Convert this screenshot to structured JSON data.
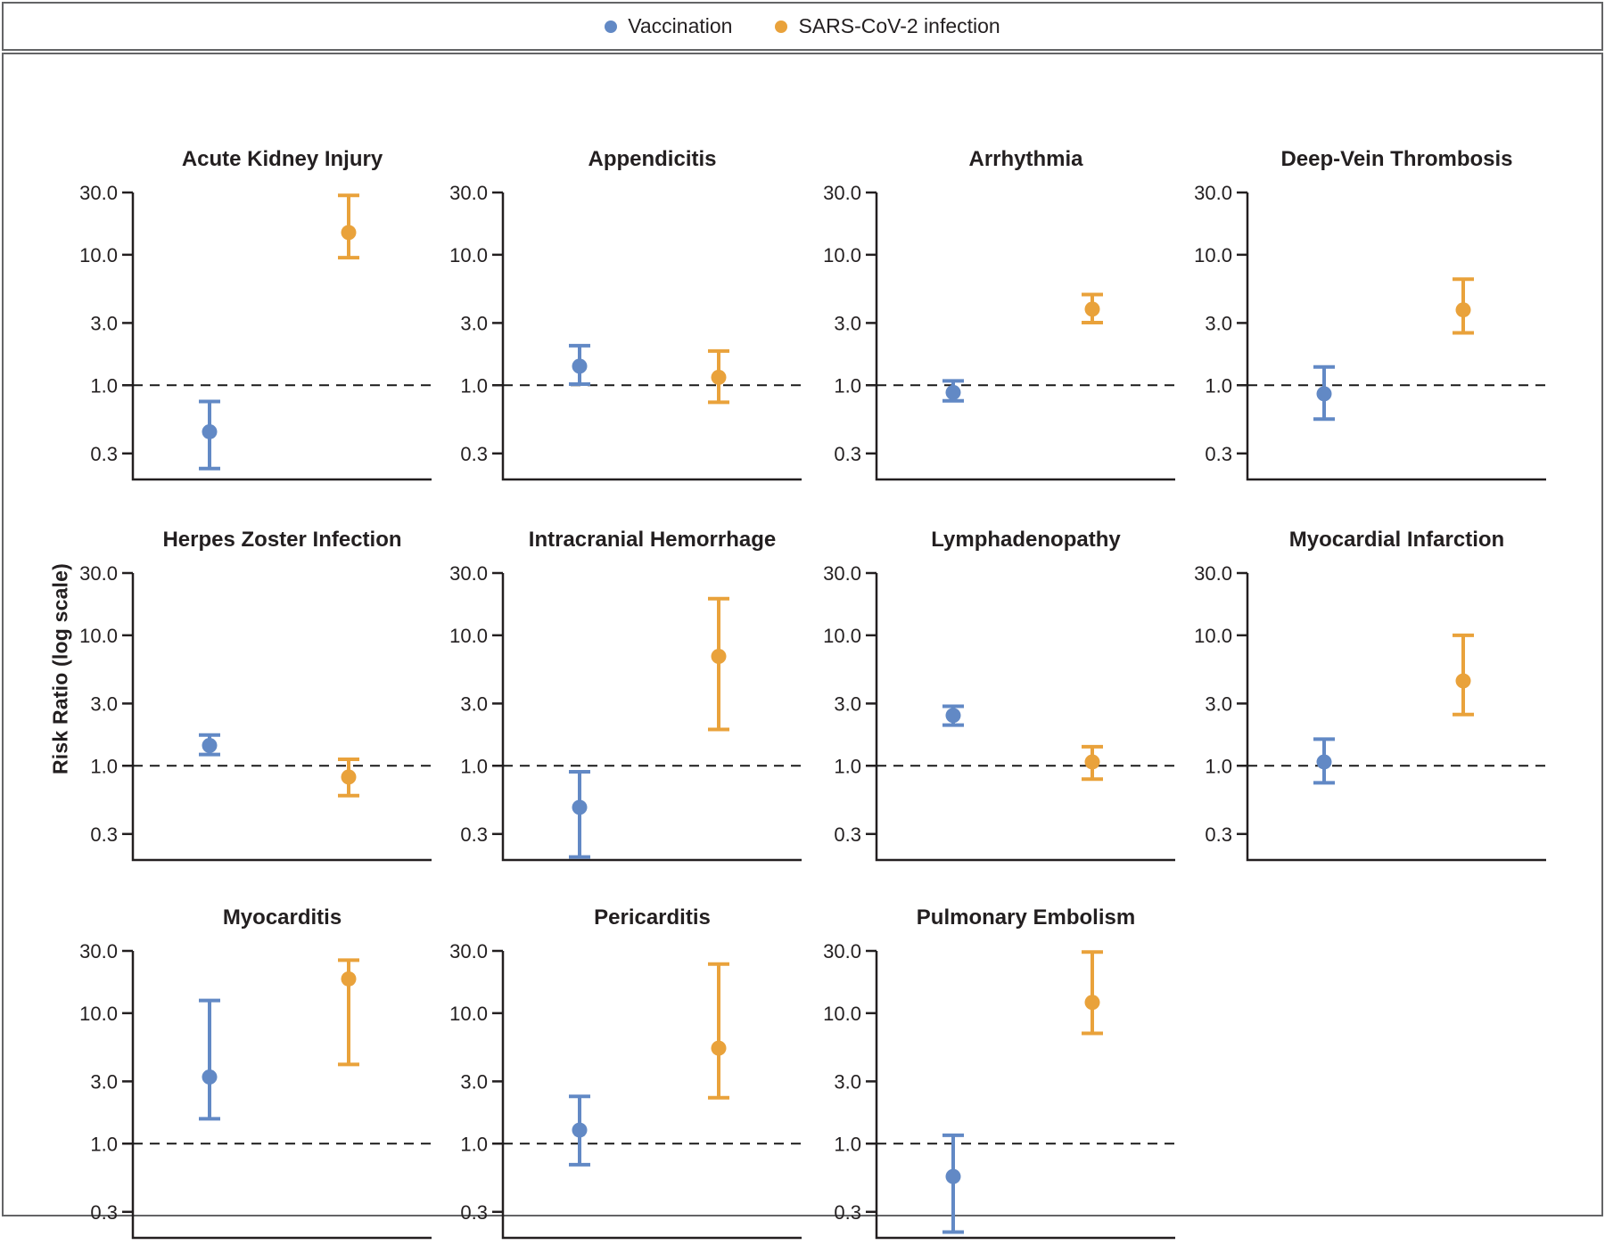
{
  "legend": {
    "items": [
      {
        "key": "vaccination",
        "label": "Vaccination",
        "color": "#6289c5"
      },
      {
        "key": "sars_cov_2_infection",
        "label": "SARS-CoV-2 infection",
        "color": "#e9a23b"
      }
    ]
  },
  "y_axis_label": "Risk Ratio (log scale)",
  "colors": {
    "vaccination": "#6289c5",
    "infection": "#e9a23b",
    "axis": "#231f20",
    "reference_line": "#1a1a1a",
    "border": "#636466"
  },
  "chart_data": {
    "type": "scatter",
    "subtype": "point-estimates-with-95ci-error-bars",
    "yscale": "log",
    "ylabel": "Risk Ratio (log scale)",
    "ylim": [
      0.19,
      30
    ],
    "yticks": [
      30.0,
      10.0,
      3.0,
      1.0,
      0.3
    ],
    "ytick_labels": [
      "30.0",
      "10.0",
      "3.0",
      "1.0",
      "0.3"
    ],
    "reference_line_y": 1.0,
    "grid": "off",
    "legend_position": "top-center",
    "series_names": [
      "Vaccination",
      "SARS-CoV-2 infection"
    ],
    "panels": [
      {
        "title": "Acute Kidney Injury",
        "row": 0,
        "col": 0,
        "vaccination": {
          "rr": 0.44,
          "ci_low": 0.23,
          "ci_high": 0.75
        },
        "sars_cov_2_infection": {
          "rr": 14.8,
          "ci_low": 9.5,
          "ci_high": 28.5
        }
      },
      {
        "title": "Appendicitis",
        "row": 0,
        "col": 1,
        "vaccination": {
          "rr": 1.4,
          "ci_low": 1.02,
          "ci_high": 2.01
        },
        "sars_cov_2_infection": {
          "rr": 1.15,
          "ci_low": 0.74,
          "ci_high": 1.83
        }
      },
      {
        "title": "Arrhythmia",
        "row": 0,
        "col": 2,
        "vaccination": {
          "rr": 0.88,
          "ci_low": 0.76,
          "ci_high": 1.08
        },
        "sars_cov_2_infection": {
          "rr": 3.83,
          "ci_low": 3.02,
          "ci_high": 4.95
        }
      },
      {
        "title": "Deep-Vein Thrombosis",
        "row": 0,
        "col": 3,
        "vaccination": {
          "rr": 0.86,
          "ci_low": 0.55,
          "ci_high": 1.38
        },
        "sars_cov_2_infection": {
          "rr": 3.78,
          "ci_low": 2.52,
          "ci_high": 6.5
        }
      },
      {
        "title": "Herpes Zoster Infection",
        "row": 1,
        "col": 0,
        "vaccination": {
          "rr": 1.43,
          "ci_low": 1.22,
          "ci_high": 1.72
        },
        "sars_cov_2_infection": {
          "rr": 0.82,
          "ci_low": 0.59,
          "ci_high": 1.12
        }
      },
      {
        "title": "Intracranial Hemorrhage",
        "row": 1,
        "col": 1,
        "vaccination": {
          "rr": 0.48,
          "ci_low": 0.2,
          "ci_high": 0.9
        },
        "sars_cov_2_infection": {
          "rr": 6.89,
          "ci_low": 1.9,
          "ci_high": 19.1
        }
      },
      {
        "title": "Lymphadenopathy",
        "row": 1,
        "col": 2,
        "vaccination": {
          "rr": 2.43,
          "ci_low": 2.05,
          "ci_high": 2.86
        },
        "sars_cov_2_infection": {
          "rr": 1.07,
          "ci_low": 0.79,
          "ci_high": 1.4
        }
      },
      {
        "title": "Myocardial Infarction",
        "row": 1,
        "col": 3,
        "vaccination": {
          "rr": 1.07,
          "ci_low": 0.74,
          "ci_high": 1.6
        },
        "sars_cov_2_infection": {
          "rr": 4.47,
          "ci_low": 2.47,
          "ci_high": 10.0
        }
      },
      {
        "title": "Myocarditis",
        "row": 2,
        "col": 0,
        "vaccination": {
          "rr": 3.24,
          "ci_low": 1.55,
          "ci_high": 12.5
        },
        "sars_cov_2_infection": {
          "rr": 18.3,
          "ci_low": 4.05,
          "ci_high": 25.5
        }
      },
      {
        "title": "Pericarditis",
        "row": 2,
        "col": 1,
        "vaccination": {
          "rr": 1.27,
          "ci_low": 0.69,
          "ci_high": 2.3
        },
        "sars_cov_2_infection": {
          "rr": 5.39,
          "ci_low": 2.25,
          "ci_high": 23.8
        }
      },
      {
        "title": "Pulmonary Embolism",
        "row": 2,
        "col": 2,
        "vaccination": {
          "rr": 0.56,
          "ci_low": 0.21,
          "ci_high": 1.16
        },
        "sars_cov_2_infection": {
          "rr": 12.1,
          "ci_low": 7.0,
          "ci_high": 29.4
        }
      }
    ]
  }
}
